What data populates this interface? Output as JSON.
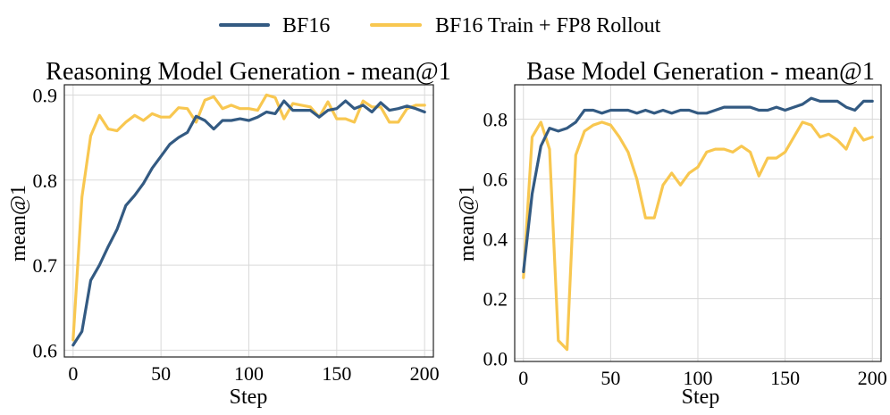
{
  "legend": [
    {
      "name": "BF16",
      "color": "#335a82"
    },
    {
      "name": "BF16 Train + FP8 Rollout",
      "color": "#f8c750"
    }
  ],
  "chart_data": [
    {
      "type": "line",
      "title": "Reasoning Model Generation - mean@1",
      "xlabel": "Step",
      "ylabel": "mean@1",
      "xlim": [
        -5,
        205
      ],
      "ylim": [
        0.592,
        0.912
      ],
      "xticks": [
        0,
        50,
        100,
        150,
        200
      ],
      "yticks": [
        0.6,
        0.7,
        0.8,
        0.9
      ],
      "ytick_labels": [
        "0.6",
        "0.7",
        "0.8",
        "0.9"
      ],
      "grid": true,
      "x": [
        0,
        5,
        10,
        15,
        20,
        25,
        30,
        35,
        40,
        45,
        50,
        55,
        60,
        65,
        70,
        75,
        80,
        85,
        90,
        95,
        100,
        105,
        110,
        115,
        120,
        125,
        130,
        135,
        140,
        145,
        150,
        155,
        160,
        165,
        170,
        175,
        180,
        185,
        190,
        195,
        200
      ],
      "series": [
        {
          "name": "BF16",
          "color": "#335a82",
          "values": [
            0.606,
            0.622,
            0.682,
            0.7,
            0.722,
            0.742,
            0.77,
            0.782,
            0.796,
            0.814,
            0.828,
            0.842,
            0.85,
            0.856,
            0.875,
            0.87,
            0.86,
            0.87,
            0.87,
            0.872,
            0.87,
            0.874,
            0.88,
            0.878,
            0.893,
            0.882,
            0.882,
            0.882,
            0.874,
            0.882,
            0.884,
            0.893,
            0.884,
            0.888,
            0.88,
            0.891,
            0.882,
            0.884,
            0.887,
            0.884,
            0.88
          ]
        },
        {
          "name": "BF16 Train + FP8 Rollout",
          "color": "#f8c750",
          "values": [
            0.612,
            0.78,
            0.852,
            0.876,
            0.86,
            0.858,
            0.868,
            0.876,
            0.87,
            0.878,
            0.874,
            0.874,
            0.885,
            0.884,
            0.868,
            0.894,
            0.898,
            0.884,
            0.888,
            0.884,
            0.884,
            0.882,
            0.9,
            0.897,
            0.872,
            0.89,
            0.888,
            0.886,
            0.874,
            0.892,
            0.872,
            0.872,
            0.868,
            0.893,
            0.886,
            0.886,
            0.868,
            0.868,
            0.884,
            0.888,
            0.888
          ]
        }
      ]
    },
    {
      "type": "line",
      "title": "Base Model Generation - mean@1",
      "xlabel": "Step",
      "ylabel": "mean@1",
      "xlim": [
        -5,
        205
      ],
      "ylim": [
        -0.01,
        0.915
      ],
      "xticks": [
        0,
        50,
        100,
        150,
        200
      ],
      "yticks": [
        0.0,
        0.2,
        0.4,
        0.6,
        0.8
      ],
      "ytick_labels": [
        "0.0",
        "0.2",
        "0.4",
        "0.6",
        "0.8"
      ],
      "grid": true,
      "x": [
        0,
        5,
        10,
        15,
        20,
        25,
        30,
        35,
        40,
        45,
        50,
        55,
        60,
        65,
        70,
        75,
        80,
        85,
        90,
        95,
        100,
        105,
        110,
        115,
        120,
        125,
        130,
        135,
        140,
        145,
        150,
        155,
        160,
        165,
        170,
        175,
        180,
        185,
        190,
        195,
        200
      ],
      "series": [
        {
          "name": "BF16",
          "color": "#335a82",
          "values": [
            0.29,
            0.55,
            0.71,
            0.77,
            0.76,
            0.77,
            0.79,
            0.83,
            0.83,
            0.82,
            0.83,
            0.83,
            0.83,
            0.82,
            0.83,
            0.82,
            0.83,
            0.82,
            0.83,
            0.83,
            0.82,
            0.82,
            0.83,
            0.84,
            0.84,
            0.84,
            0.84,
            0.83,
            0.83,
            0.84,
            0.83,
            0.84,
            0.85,
            0.87,
            0.86,
            0.86,
            0.86,
            0.84,
            0.83,
            0.86,
            0.86
          ]
        },
        {
          "name": "BF16 Train + FP8 Rollout",
          "color": "#f8c750",
          "values": [
            0.27,
            0.74,
            0.79,
            0.7,
            0.06,
            0.03,
            0.68,
            0.76,
            0.78,
            0.79,
            0.78,
            0.74,
            0.69,
            0.6,
            0.47,
            0.47,
            0.58,
            0.62,
            0.58,
            0.62,
            0.64,
            0.69,
            0.7,
            0.7,
            0.69,
            0.71,
            0.69,
            0.61,
            0.67,
            0.67,
            0.69,
            0.74,
            0.79,
            0.78,
            0.74,
            0.75,
            0.73,
            0.7,
            0.77,
            0.73,
            0.74
          ]
        }
      ]
    }
  ]
}
